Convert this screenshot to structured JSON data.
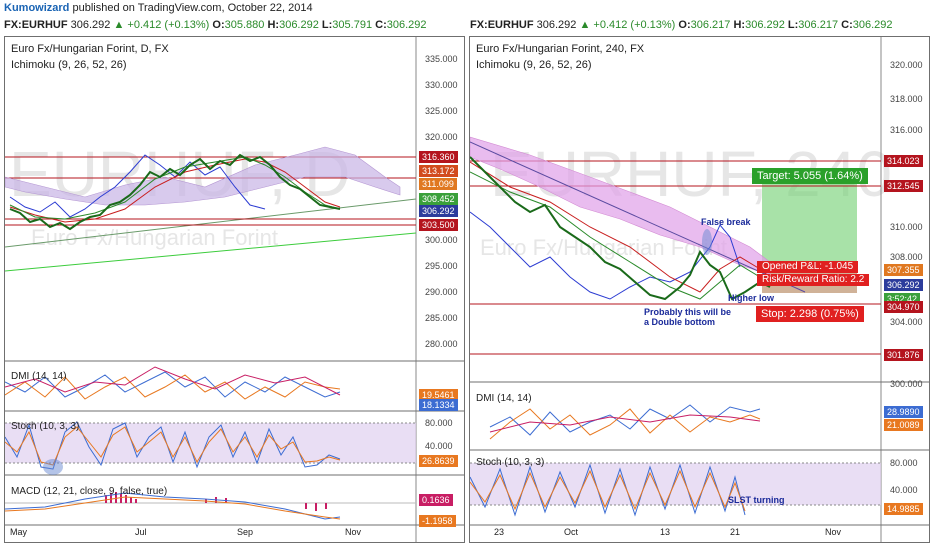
{
  "header": {
    "author": "Kumowizard",
    "published": " published on TradingView.com, October 22, 2014"
  },
  "left": {
    "symbol": "FX:EURHUF",
    "last": "306.292",
    "change": "▲ +0.412 (+0.13%)",
    "o_label": "O:",
    "o": "305.880",
    "h_label": "H:",
    "h": "306.292",
    "l_label": "L:",
    "l": "305.791",
    "c_label": "C:",
    "c": "306.292",
    "title": "Euro Fx/Hungarian Forint, D, FX",
    "indicator": "Ichimoku (9, 26, 52, 26)",
    "watermark_big": "EURHUF, D",
    "watermark_small": "Euro Fx/Hungarian Forint",
    "price_axis": [
      "335.000",
      "330.000",
      "325.000",
      "320.000",
      "315.000",
      "310.000",
      "305.000",
      "300.000",
      "295.000",
      "290.000",
      "285.000",
      "280.000"
    ],
    "price_tags": [
      {
        "text": "316.360",
        "color": "#b4141e"
      },
      {
        "text": "313.172",
        "color": "#d24b1e"
      },
      {
        "text": "311.099",
        "color": "#e07820"
      },
      {
        "text": "308.452",
        "color": "#3aa03a"
      },
      {
        "text": "306.292",
        "color": "#2c3c9c"
      },
      {
        "text": "303.500",
        "color": "#b4141e"
      }
    ],
    "dmi_label": "DMI (14, 14)",
    "dmi_tags": [
      {
        "text": "19.5461",
        "color": "#e87820"
      },
      {
        "text": "18.1334",
        "color": "#3c6cd2"
      }
    ],
    "stoch_label": "Stoch (10, 3, 3)",
    "stoch_axis": [
      "80.000",
      "40.000"
    ],
    "stoch_tags": [
      {
        "text": "26.8639",
        "color": "#e87820"
      }
    ],
    "macd_label": "MACD (12, 21, close, 9, false, true)",
    "macd_tags": [
      {
        "text": "0.1636",
        "color": "#c81e64"
      },
      {
        "text": "-1.1958",
        "color": "#e87820"
      }
    ],
    "time_axis": [
      "May",
      "Jul",
      "Sep",
      "Nov"
    ]
  },
  "right": {
    "symbol": "FX:EURHUF",
    "last": "306.292",
    "change": "▲ +0.412 (+0.13%)",
    "o_label": "O:",
    "o": "306.217",
    "h_label": "H:",
    "h": "306.292",
    "l_label": "L:",
    "l": "306.217",
    "c_label": "C:",
    "c": "306.292",
    "title": "Euro Fx/Hungarian Forint, 240, FX",
    "indicator": "Ichimoku (9, 26, 52, 26)",
    "watermark_big": "EURHUF, 240",
    "watermark_small": "Euro Fx/Hungarian Forint",
    "price_axis": [
      "320.000",
      "318.000",
      "316.000",
      "314.000",
      "312.000",
      "310.000",
      "308.000",
      "306.000",
      "304.000",
      "302.000",
      "300.000"
    ],
    "price_tags": [
      {
        "text": "314.023",
        "color": "#b4141e"
      },
      {
        "text": "312.545",
        "color": "#b4141e"
      },
      {
        "text": "307.355",
        "color": "#e07820"
      },
      {
        "text": "306.292",
        "color": "#2c3c9c"
      },
      {
        "text": "3:52:42",
        "color": "#3aa03a"
      },
      {
        "text": "304.970",
        "color": "#b4141e"
      },
      {
        "text": "301.876",
        "color": "#b4141e"
      }
    ],
    "target": "Target: 5.055 (1.64%)",
    "opened_pl": "Opened P&L: -1.045",
    "rr_ratio": "Risk/Reward Ratio: 2.2",
    "stop": "Stop: 2.298 (0.75%)",
    "ann_false_break": "False break",
    "ann_higher_low": "Higher low",
    "ann_double_1": "Probably this will be",
    "ann_double_2": "a Double bottom",
    "dmi_label": "DMI (14, 14)",
    "dmi_tags": [
      {
        "text": "28.9890",
        "color": "#3c6cd2"
      },
      {
        "text": "21.0089",
        "color": "#e87820"
      }
    ],
    "stoch_label": "Stoch (10, 3, 3)",
    "stoch_axis": [
      "80.000",
      "40.000"
    ],
    "stoch_tags": [
      {
        "text": "14.9885",
        "color": "#e87820"
      }
    ],
    "ann_slst": "SLST turning",
    "time_axis": [
      "23",
      "Oct",
      "13",
      "21",
      "Nov"
    ]
  }
}
